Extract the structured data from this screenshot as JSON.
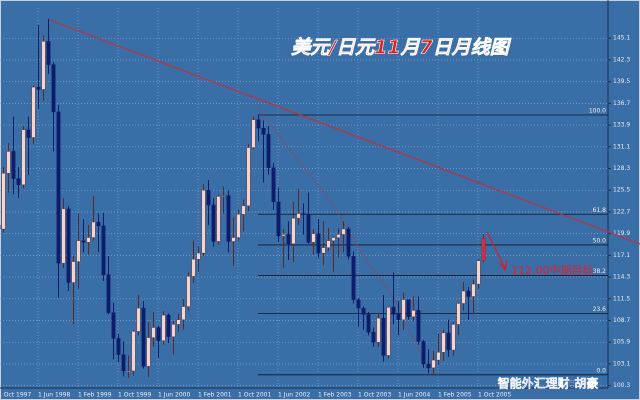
{
  "chart_data": {
    "type": "candlestick",
    "title": "美元/日元11月7日月线图",
    "footer": "智能外汇理财:胡豪",
    "annotation": "112.00中期目标",
    "categories": [
      "1 Oct 1997",
      null,
      null,
      null,
      null,
      null,
      null,
      null,
      "1 Jun 1998",
      null,
      null,
      null,
      null,
      null,
      null,
      null,
      "1 Feb 1999",
      null,
      null,
      null,
      null,
      null,
      null,
      null,
      "1 Oct 1999",
      null,
      null,
      null,
      null,
      null,
      null,
      null,
      "1 Jun 2000",
      null,
      null,
      null,
      null,
      null,
      null,
      null,
      "1 Feb 2001",
      null,
      null,
      null,
      null,
      null,
      null,
      null,
      "1 Oct 2001",
      null,
      null,
      null,
      null,
      null,
      null,
      null,
      "1 Jun 2002",
      null,
      null,
      null,
      null,
      null,
      null,
      null,
      "1 Feb 2003",
      null,
      null,
      null,
      null,
      null,
      null,
      null,
      "1 Oct 2003",
      null,
      null,
      null,
      null,
      null,
      null,
      null,
      "1 Jun 2004",
      null,
      null,
      null,
      null,
      null,
      null,
      null,
      "1 Feb 2005",
      null,
      null,
      null,
      null,
      null,
      null,
      null,
      "1 Oct 2005",
      null
    ],
    "open": [
      121.0,
      120.5,
      127.7,
      130.5,
      127.0,
      126.2,
      133.3,
      132.3,
      138.8,
      138.5,
      144.7,
      141.7,
      135.6,
      116.1,
      123.1,
      113.6,
      116.3,
      119.0,
      118.8,
      119.4,
      121.4,
      120.9,
      114.6,
      109.7,
      106.4,
      104.3,
      102.2,
      102.2,
      107.3,
      110.3,
      102.8,
      106.5,
      107.8,
      106.1,
      109.4,
      106.6,
      108.2,
      108.8,
      110.5,
      114.4,
      116.6,
      117.4,
      125.5,
      123.6,
      118.9,
      124.7,
      124.8,
      118.9,
      119.4,
      122.4,
      123.5,
      131.0,
      134.6,
      133.5,
      132.7,
      128.4,
      124.0,
      119.6,
      119.8,
      118.6,
      121.9,
      122.5,
      122.4,
      118.8,
      119.9,
      117.4,
      118.1,
      119.0,
      119.4,
      119.8,
      120.5,
      117.0,
      111.4,
      110.3,
      109.5,
      107.2,
      105.9,
      109.0,
      104.2,
      110.4,
      109.5,
      108.8,
      111.4,
      109.2,
      110.0,
      106.0,
      103.1,
      102.6,
      103.6,
      104.6,
      107.1,
      104.9,
      108.2,
      110.9,
      112.5,
      111.8,
      113.4,
      116.4
    ],
    "high": [
      123.5,
      128.5,
      131.6,
      135.0,
      128.5,
      133.8,
      135.0,
      139.0,
      146.8,
      145.5,
      147.6,
      142.0,
      136.5,
      124.5,
      123.5,
      117.0,
      122.5,
      121.8,
      121.0,
      124.8,
      122.5,
      122.6,
      117.0,
      111.0,
      107.0,
      106.0,
      104.2,
      107.5,
      112.0,
      111.2,
      108.5,
      109.8,
      108.0,
      109.9,
      109.6,
      108.6,
      109.6,
      111.5,
      114.9,
      119.0,
      118.3,
      126.3,
      126.8,
      124.5,
      125.0,
      126.0,
      125.5,
      122.0,
      123.0,
      124.3,
      131.5,
      135.0,
      135.2,
      134.5,
      133.8,
      129.0,
      125.8,
      120.5,
      121.5,
      124.0,
      125.7,
      123.8,
      125.2,
      120.5,
      121.8,
      121.5,
      120.6,
      119.6,
      120.6,
      121.5,
      120.8,
      117.6,
      111.6,
      110.5,
      109.8,
      107.8,
      109.7,
      112.0,
      110.5,
      114.9,
      111.2,
      112.3,
      111.4,
      111.8,
      111.8,
      106.2,
      105.0,
      104.8,
      107.0,
      107.5,
      108.8,
      108.5,
      111.0,
      113.7,
      113.0,
      114.0,
      116.6,
      119.8
    ],
    "low": [
      119.0,
      120.0,
      125.2,
      125.0,
      124.5,
      125.8,
      127.5,
      131.5,
      136.0,
      137.0,
      140.5,
      130.5,
      111.6,
      115.5,
      112.5,
      108.2,
      112.8,
      117.5,
      117.2,
      119.0,
      117.5,
      113.8,
      109.5,
      103.7,
      103.3,
      101.5,
      101.3,
      101.6,
      106.8,
      102.5,
      101.4,
      105.3,
      103.9,
      105.6,
      105.8,
      104.3,
      107.2,
      107.5,
      110.0,
      113.5,
      115.0,
      117.0,
      121.0,
      118.2,
      118.5,
      122.5,
      117.5,
      115.8,
      119.0,
      120.2,
      122.8,
      130.8,
      131.8,
      126.5,
      127.5,
      123.0,
      118.8,
      115.5,
      116.5,
      116.2,
      121.0,
      119.8,
      118.6,
      117.2,
      116.8,
      115.8,
      117.7,
      115.0,
      116.8,
      117.5,
      116.6,
      110.9,
      107.9,
      107.5,
      106.8,
      105.3,
      105.3,
      103.4,
      103.8,
      108.2,
      106.8,
      107.5,
      108.8,
      108.6,
      105.6,
      102.6,
      101.9,
      101.7,
      103.0,
      103.5,
      104.0,
      104.2,
      106.8,
      110.0,
      108.8,
      109.5,
      112.8,
      116.2
    ],
    "close": [
      120.5,
      127.7,
      130.5,
      127.0,
      126.2,
      133.3,
      132.3,
      138.8,
      138.5,
      144.7,
      141.7,
      135.6,
      116.1,
      123.1,
      113.6,
      116.3,
      119.0,
      118.8,
      119.4,
      121.4,
      120.9,
      114.6,
      109.7,
      106.4,
      104.3,
      102.2,
      102.2,
      107.3,
      110.3,
      102.8,
      106.5,
      107.8,
      106.1,
      109.4,
      106.6,
      108.2,
      108.8,
      110.5,
      114.4,
      116.6,
      117.4,
      125.5,
      123.6,
      118.9,
      124.7,
      124.8,
      118.9,
      119.4,
      122.4,
      123.5,
      131.0,
      134.6,
      133.5,
      132.7,
      128.4,
      124.0,
      119.6,
      119.8,
      118.6,
      121.9,
      122.5,
      122.4,
      118.8,
      119.9,
      117.4,
      118.1,
      119.0,
      119.4,
      119.8,
      120.5,
      117.0,
      111.4,
      110.3,
      109.5,
      107.2,
      105.9,
      109.0,
      104.2,
      110.4,
      109.5,
      108.8,
      111.4,
      109.2,
      110.0,
      106.0,
      103.1,
      102.6,
      103.6,
      104.6,
      107.1,
      104.9,
      108.2,
      110.9,
      112.5,
      111.8,
      113.4,
      116.4,
      119.3
    ],
    "up_color": "#f4d4cc",
    "down_color": "#0b1d6b",
    "ylim": [
      100.0,
      149.0
    ],
    "yticks": [
      100.3,
      103.1,
      105.9,
      108.7,
      111.5,
      114.3,
      117.1,
      119.9,
      122.7,
      125.5,
      128.3,
      131.1,
      133.9,
      136.7,
      139.5,
      142.3,
      145.1
    ],
    "fib_levels": [
      {
        "value": 0,
        "label": "0.0"
      },
      {
        "value": 23.6,
        "label": "23.6"
      },
      {
        "value": 38.2,
        "label": "38.2"
      },
      {
        "value": 50,
        "label": "50.0"
      },
      {
        "value": 61.8,
        "label": "61.8"
      },
      {
        "value": 100,
        "label": "100.0"
      }
    ],
    "grid": true
  }
}
